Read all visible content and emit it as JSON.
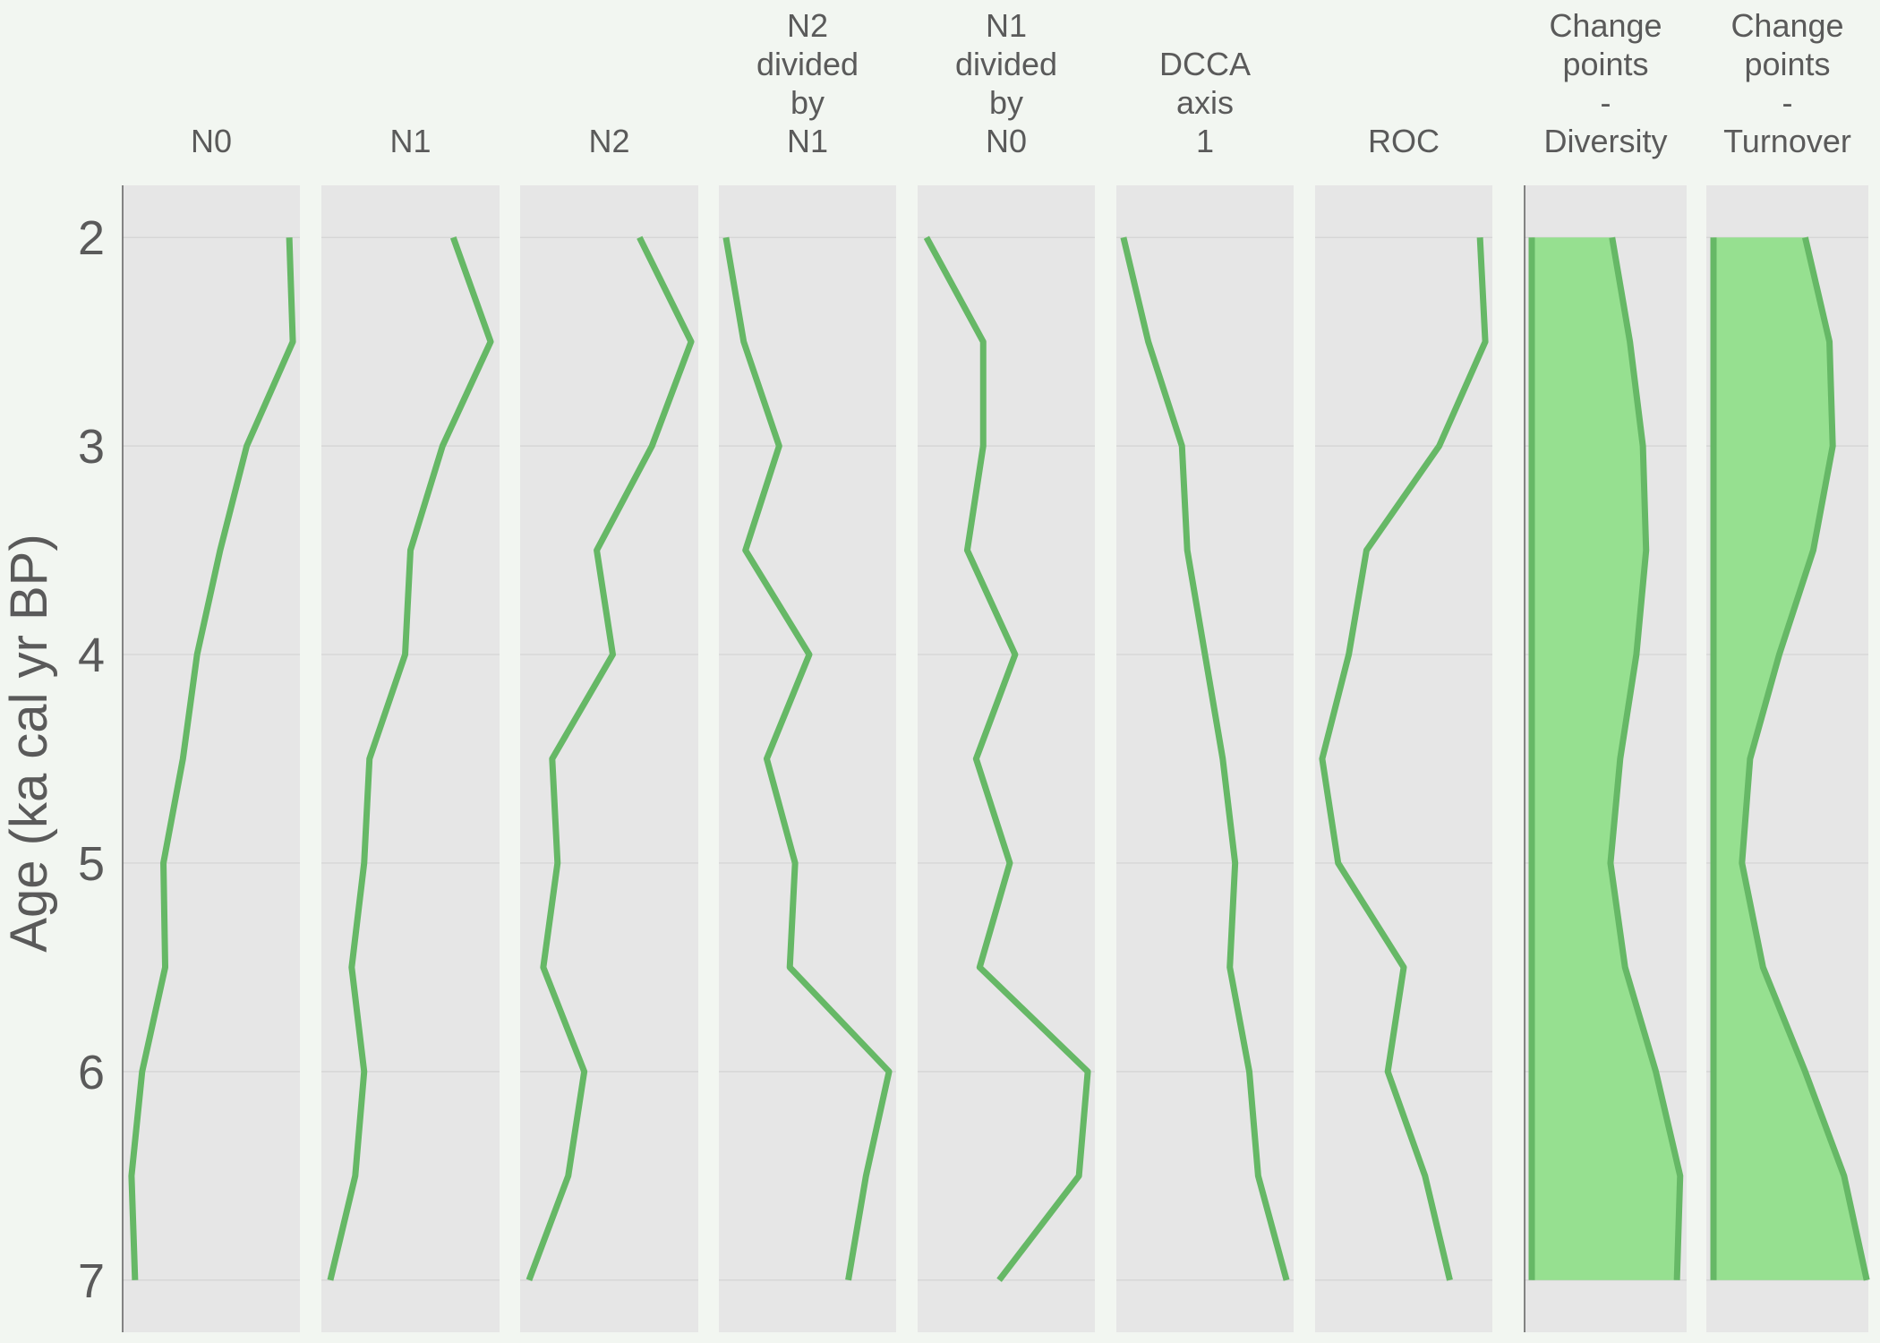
{
  "chart_data": {
    "type": "line",
    "orientation": "vertical-stratigraphic",
    "ylabel": "Age (ka cal yr BP)",
    "y": [
      2,
      2.5,
      3,
      3.5,
      4,
      4.5,
      5,
      5.5,
      6,
      6.5,
      7
    ],
    "ylim": [
      7.25,
      1.75
    ],
    "yticks": [
      2,
      3,
      4,
      5,
      6,
      7
    ],
    "grid": true,
    "colors": {
      "line": "#66b866",
      "area": "#96e090",
      "panel": "#e6e6e6"
    },
    "panels": [
      {
        "title": [
          "N0"
        ],
        "xlim": [
          0,
          1
        ],
        "values": [
          0.94,
          0.96,
          0.7,
          0.55,
          0.42,
          0.34,
          0.23,
          0.24,
          0.11,
          0.05,
          0.07
        ]
      },
      {
        "title": [
          "N1"
        ],
        "xlim": [
          0,
          1
        ],
        "values": [
          0.74,
          0.95,
          0.68,
          0.5,
          0.47,
          0.27,
          0.24,
          0.17,
          0.24,
          0.19,
          0.05
        ]
      },
      {
        "title": [
          "N2"
        ],
        "xlim": [
          0,
          1
        ],
        "values": [
          0.67,
          0.96,
          0.74,
          0.43,
          0.52,
          0.18,
          0.21,
          0.13,
          0.36,
          0.27,
          0.05
        ]
      },
      {
        "title": [
          "N2",
          "divided",
          "by",
          "N1"
        ],
        "xlim": [
          0,
          1
        ],
        "values": [
          0.04,
          0.14,
          0.34,
          0.15,
          0.51,
          0.27,
          0.43,
          0.4,
          0.96,
          0.83,
          0.73
        ]
      },
      {
        "title": [
          "N1",
          "divided",
          "by",
          "N0"
        ],
        "xlim": [
          0,
          1
        ],
        "values": [
          0.05,
          0.37,
          0.37,
          0.28,
          0.55,
          0.33,
          0.52,
          0.35,
          0.96,
          0.91,
          0.46
        ]
      },
      {
        "title": [
          "DCCA",
          "axis",
          "1"
        ],
        "xlim": [
          0,
          1
        ],
        "values": [
          0.04,
          0.18,
          0.37,
          0.4,
          0.5,
          0.6,
          0.67,
          0.64,
          0.75,
          0.8,
          0.96
        ]
      },
      {
        "title": [
          "ROC"
        ],
        "xlim": [
          0,
          1
        ],
        "values": [
          0.93,
          0.96,
          0.7,
          0.29,
          0.19,
          0.04,
          0.13,
          0.5,
          0.41,
          0.62,
          0.76
        ]
      },
      {
        "title": [
          "Change",
          "points",
          "-",
          "Diversity"
        ],
        "xlim": [
          0,
          1
        ],
        "axis_line": true,
        "fill": true,
        "values": [
          0.54,
          0.65,
          0.73,
          0.75,
          0.69,
          0.59,
          0.53,
          0.62,
          0.81,
          0.96,
          0.94
        ]
      },
      {
        "title": [
          "Change",
          "points",
          "-",
          "Turnover"
        ],
        "xlim": [
          0,
          1
        ],
        "fill": true,
        "values": [
          0.61,
          0.76,
          0.78,
          0.66,
          0.45,
          0.27,
          0.22,
          0.35,
          0.61,
          0.85,
          0.99
        ]
      }
    ]
  }
}
